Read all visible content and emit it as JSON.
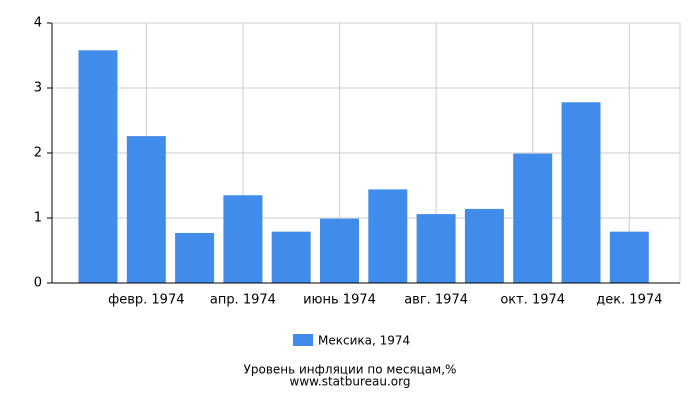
{
  "chart_data": {
    "type": "bar",
    "title": "Уровень инфляции по месяцам,%",
    "subtitle": "www.statbureau.org",
    "categories": [
      null,
      "февр. 1974",
      null,
      "апр. 1974",
      null,
      "июнь 1974",
      null,
      "авг. 1974",
      null,
      "окт. 1974",
      null,
      "дек. 1974"
    ],
    "series": [
      {
        "name": "Мексика, 1974",
        "color": "#418bea",
        "values": [
          3.58,
          2.26,
          0.77,
          1.35,
          0.79,
          0.99,
          1.44,
          1.06,
          1.14,
          1.99,
          2.78,
          0.79
        ]
      }
    ],
    "ylim": [
      0,
      4
    ],
    "yticks": [
      0,
      1,
      2,
      3,
      4
    ],
    "grid": true
  }
}
